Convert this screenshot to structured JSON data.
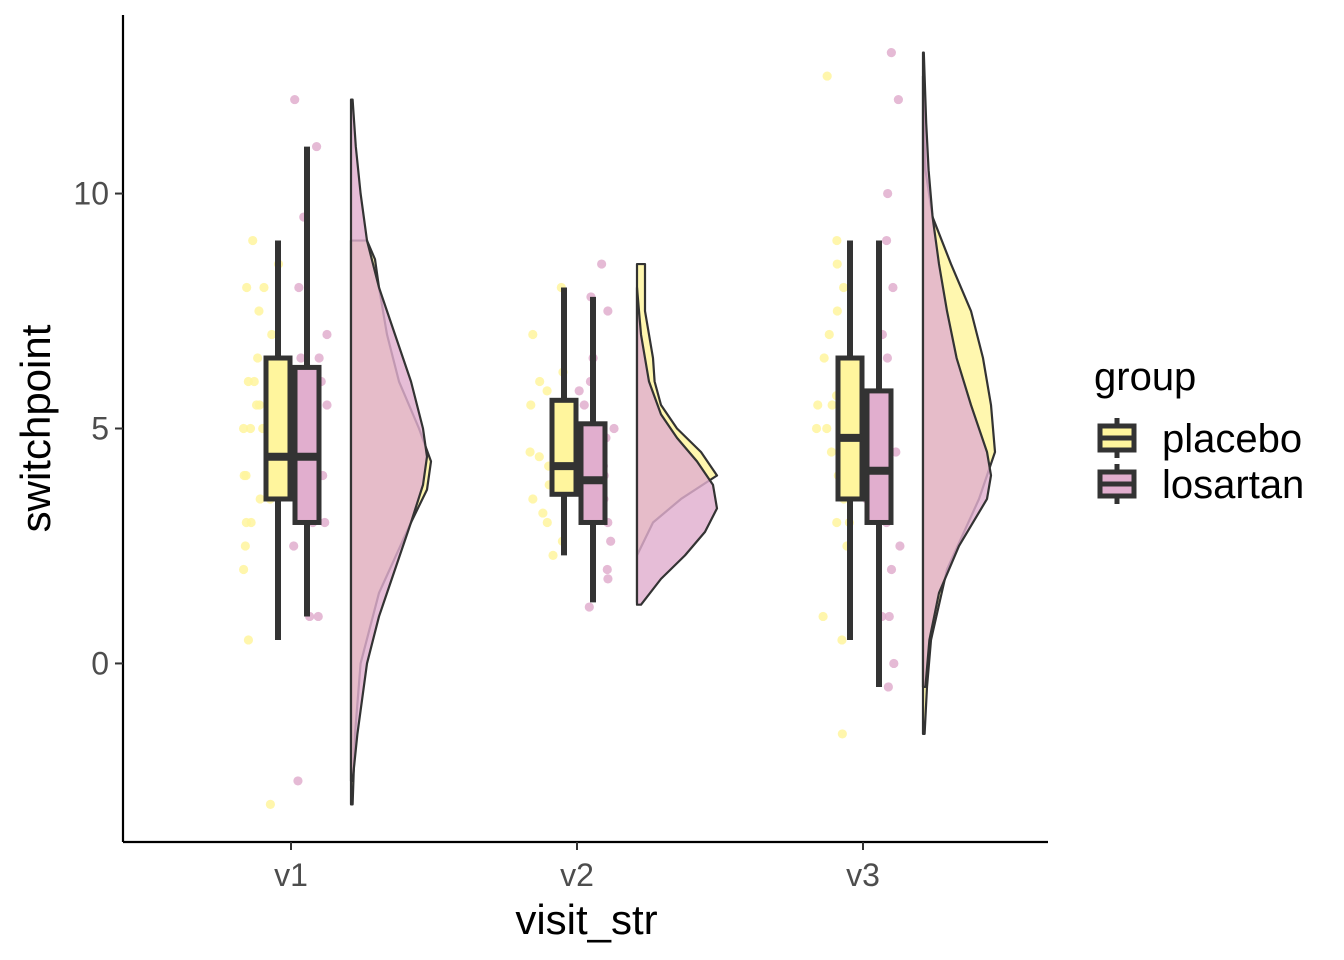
{
  "chart_data": {
    "type": "raincloud",
    "xlabel": "visit_str",
    "ylabel": "switchpoint",
    "categories": [
      "v1",
      "v2",
      "v3"
    ],
    "ylim": [
      -3.8,
      13.8
    ],
    "yticks": [
      0,
      5,
      10
    ],
    "ytick_labels": [
      "0",
      "5",
      "10"
    ],
    "grid": false,
    "legend": {
      "title": "group",
      "position": "right"
    },
    "series": [
      {
        "name": "placebo",
        "color": "#FFF59D",
        "boxes": [
          {
            "category": "v1",
            "whisker_low": 0.5,
            "q1": 3.5,
            "median": 4.4,
            "q3": 6.5,
            "whisker_high": 9.0
          },
          {
            "category": "v2",
            "whisker_low": 2.3,
            "q1": 3.6,
            "median": 4.2,
            "q3": 5.6,
            "whisker_high": 8.0
          },
          {
            "category": "v3",
            "whisker_low": 0.5,
            "q1": 3.5,
            "median": 4.8,
            "q3": 6.5,
            "whisker_high": 9.0
          }
        ],
        "densities": [
          {
            "category": "v1",
            "y": [
              -3.0,
              -1.5,
              0.0,
              1.5,
              3.0,
              3.7,
              4.3,
              5.0,
              6.0,
              7.0,
              8.0,
              8.6,
              9.0
            ],
            "width": [
              0.02,
              0.05,
              0.12,
              0.35,
              0.75,
              0.95,
              1.0,
              0.85,
              0.6,
              0.45,
              0.35,
              0.3,
              0.2
            ]
          },
          {
            "category": "v2",
            "y": [
              1.3,
              2.3,
              3.0,
              3.5,
              4.0,
              4.5,
              5.0,
              5.5,
              6.0,
              6.5,
              7.0,
              7.5,
              8.5
            ],
            "width": [
              0.0,
              0.0,
              0.2,
              0.55,
              1.0,
              0.8,
              0.5,
              0.3,
              0.22,
              0.2,
              0.15,
              0.1,
              0.1
            ]
          },
          {
            "category": "v3",
            "y": [
              -1.5,
              -0.5,
              0.5,
              2.0,
              3.5,
              4.5,
              5.5,
              6.5,
              7.5,
              8.5,
              9.5,
              10.5,
              12.5
            ],
            "width": [
              0.02,
              0.05,
              0.1,
              0.3,
              0.7,
              0.9,
              0.85,
              0.75,
              0.6,
              0.35,
              0.12,
              0.03,
              0.0
            ]
          }
        ],
        "points": [
          {
            "category": "v1",
            "y": [
              9.0,
              8.5,
              8.0,
              7.5,
              7.0,
              6.5,
              6.0,
              6.0,
              5.5,
              5.5,
              5.0,
              5.0,
              5.0,
              4.5,
              4.5,
              4.0,
              4.0,
              3.5,
              3.5,
              3.0,
              3.0,
              2.5,
              2.0,
              8.0,
              0.5,
              -3.0
            ]
          },
          {
            "category": "v2",
            "y": [
              8.0,
              7.0,
              6.2,
              6.0,
              5.5,
              5.0,
              4.8,
              4.5,
              4.2,
              4.0,
              3.8,
              3.5,
              3.2,
              3.0,
              2.6,
              2.3,
              5.8,
              4.4
            ]
          },
          {
            "category": "v3",
            "y": [
              9.0,
              8.0,
              7.5,
              7.0,
              6.5,
              6.0,
              6.0,
              5.5,
              5.5,
              5.0,
              5.0,
              4.5,
              4.0,
              3.5,
              3.0,
              3.0,
              2.5,
              1.0,
              0.5,
              -1.5,
              12.5,
              8.5,
              5.7
            ]
          }
        ]
      },
      {
        "name": "losartan",
        "color": "#E1AECE",
        "boxes": [
          {
            "category": "v1",
            "whisker_low": 1.0,
            "q1": 3.0,
            "median": 4.4,
            "q3": 6.3,
            "whisker_high": 11.0
          },
          {
            "category": "v2",
            "whisker_low": 1.3,
            "q1": 3.0,
            "median": 3.9,
            "q3": 5.1,
            "whisker_high": 7.8
          },
          {
            "category": "v3",
            "whisker_low": -0.5,
            "q1": 3.0,
            "median": 4.1,
            "q3": 5.8,
            "whisker_high": 9.0
          }
        ],
        "densities": [
          {
            "category": "v1",
            "y": [
              -2.5,
              -1.5,
              0.0,
              1.0,
              2.0,
              3.0,
              3.8,
              4.4,
              5.0,
              6.0,
              7.0,
              8.0,
              9.0,
              10.0,
              11.0,
              12.0
            ],
            "width": [
              0.02,
              0.08,
              0.2,
              0.35,
              0.55,
              0.75,
              0.9,
              0.95,
              0.9,
              0.75,
              0.55,
              0.35,
              0.2,
              0.12,
              0.06,
              0.02
            ]
          },
          {
            "category": "v2",
            "y": [
              1.25,
              1.8,
              2.3,
              2.8,
              3.3,
              3.8,
              4.3,
              4.8,
              5.3,
              6.0,
              7.0,
              8.0
            ],
            "width": [
              0.05,
              0.3,
              0.6,
              0.85,
              1.0,
              0.95,
              0.75,
              0.5,
              0.3,
              0.15,
              0.05,
              0.0
            ]
          },
          {
            "category": "v3",
            "y": [
              -0.5,
              0.5,
              1.5,
              2.5,
              3.5,
              4.0,
              4.5,
              5.5,
              6.5,
              7.5,
              8.5,
              9.5,
              10.5,
              11.5,
              12.5,
              13.0
            ],
            "width": [
              0.03,
              0.08,
              0.2,
              0.45,
              0.8,
              0.85,
              0.8,
              0.6,
              0.42,
              0.3,
              0.2,
              0.12,
              0.07,
              0.04,
              0.02,
              0.01
            ]
          }
        ],
        "points": [
          {
            "category": "v1",
            "y": [
              12.0,
              11.0,
              9.5,
              8.0,
              7.0,
              6.5,
              6.5,
              6.0,
              5.5,
              5.0,
              5.0,
              4.5,
              4.0,
              4.0,
              3.5,
              3.5,
              3.0,
              3.0,
              2.5,
              1.0,
              1.0,
              -2.5
            ]
          },
          {
            "category": "v2",
            "y": [
              8.5,
              7.8,
              7.5,
              6.5,
              6.0,
              5.8,
              5.5,
              5.0,
              4.8,
              4.5,
              4.2,
              4.0,
              3.8,
              3.5,
              3.0,
              2.6,
              2.0,
              1.8,
              1.2
            ]
          },
          {
            "category": "v3",
            "y": [
              13.0,
              12.0,
              10.0,
              9.0,
              8.0,
              7.0,
              6.5,
              5.5,
              5.0,
              4.5,
              4.0,
              3.5,
              3.0,
              2.5,
              2.0,
              1.0,
              1.0,
              0.0,
              -0.5
            ]
          }
        ]
      }
    ]
  }
}
